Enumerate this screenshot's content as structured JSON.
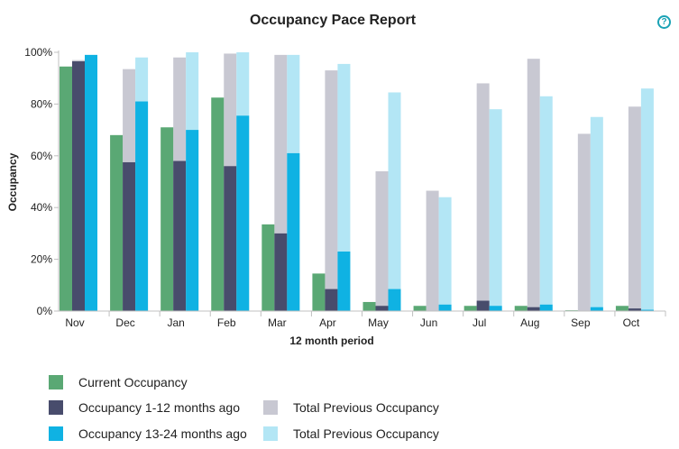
{
  "header": {
    "title": "Occupancy Pace Report",
    "help_icon": "help-circle-icon",
    "help_glyph": "?"
  },
  "colors": {
    "current": "#5aa874",
    "prev12": "#484c6c",
    "prev24": "#0fb2e3",
    "total12": "#c8c8d2",
    "total24": "#b3e6f5",
    "help": "#1aa2b5"
  },
  "chart_data": {
    "type": "bar",
    "title": "Occupancy Pace Report",
    "xlabel": "12 month period",
    "ylabel": "Occupancy",
    "ylim": [
      0,
      100
    ],
    "yticks": [
      "0%",
      "20%",
      "40%",
      "60%",
      "80%",
      "100%"
    ],
    "categories": [
      "Nov",
      "Dec",
      "Jan",
      "Feb",
      "Mar",
      "Apr",
      "May",
      "Jun",
      "Jul",
      "Aug",
      "Sep",
      "Oct"
    ],
    "series": [
      {
        "name": "Current Occupancy",
        "values": [
          94.5,
          68,
          71,
          82.5,
          33.5,
          14.5,
          3.5,
          2,
          2,
          2,
          0.3,
          2
        ]
      },
      {
        "name": "Occupancy 1-12 months ago",
        "values": [
          96.5,
          57.5,
          58,
          56,
          30,
          8.5,
          2,
          0,
          4,
          1.5,
          0,
          1
        ]
      },
      {
        "name": "Total Previous Occupancy",
        "values": [
          97,
          93.5,
          98,
          99.5,
          99,
          93,
          54,
          46.5,
          88,
          97.5,
          68.5,
          79
        ]
      },
      {
        "name": "Occupancy 13-24 months ago",
        "values": [
          99,
          81,
          70,
          75.5,
          61,
          23,
          8.5,
          2.5,
          2,
          2.5,
          1.5,
          0.5
        ]
      },
      {
        "name": "Total Previous Occupancy",
        "values": [
          98.5,
          98,
          100,
          100,
          99,
          95.5,
          84.5,
          44,
          78,
          83,
          75,
          86
        ]
      }
    ]
  },
  "legend": {
    "col1": [
      "Current Occupancy",
      "Occupancy 1-12 months ago",
      "Occupancy 13-24 months ago"
    ],
    "col2": [
      "Total Previous Occupancy",
      "Total Previous Occupancy"
    ]
  }
}
